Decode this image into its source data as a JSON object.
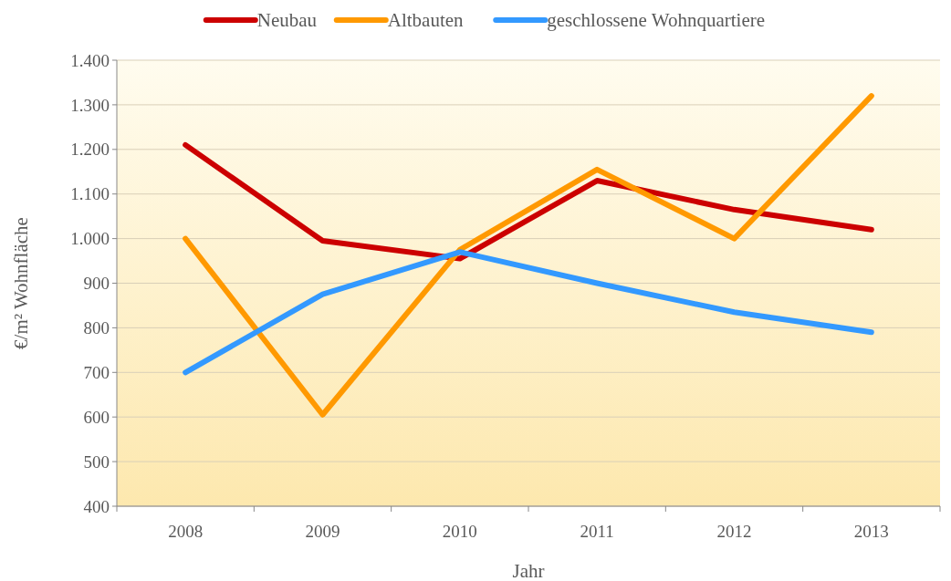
{
  "chart_data": {
    "type": "line",
    "xlabel": "Jahr",
    "ylabel": "€/m² Wohnfläche",
    "categories": [
      "2008",
      "2009",
      "2010",
      "2011",
      "2012",
      "2013"
    ],
    "series": [
      {
        "name": "Neubau",
        "color": "#cc0000",
        "values": [
          1210,
          995,
          955,
          1130,
          1065,
          1020
        ]
      },
      {
        "name": "Altbauten",
        "color": "#ff9900",
        "values": [
          1000,
          605,
          975,
          1155,
          1000,
          1320
        ]
      },
      {
        "name": "geschlossene Wohnquartiere",
        "color": "#3399ff",
        "values": [
          700,
          875,
          970,
          900,
          835,
          790
        ]
      }
    ],
    "ylim": [
      400,
      1400
    ],
    "yticks": [
      400,
      500,
      600,
      700,
      800,
      900,
      {
        "value": 1000,
        "label": "1.000"
      },
      {
        "value": 1100,
        "label": "1.100"
      },
      {
        "value": 1200,
        "label": "1.200"
      },
      {
        "value": 1300,
        "label": "1.300"
      },
      {
        "value": 1400,
        "label": "1.400"
      }
    ],
    "grid": "y",
    "legend": "top"
  }
}
